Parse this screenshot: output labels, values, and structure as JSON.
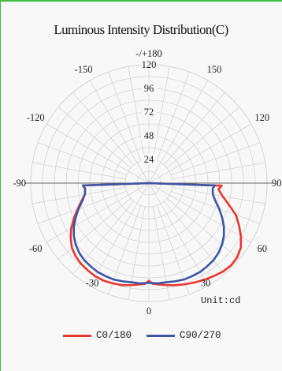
{
  "chart_data": {
    "type": "polar",
    "title": "Luminous Intensity Distribution(C)",
    "unit_label": "Unit:cd",
    "radial_ticks": [
      24,
      48,
      72,
      96,
      120
    ],
    "rmax": 120,
    "angle_labels": [
      {
        "text": "-/+180",
        "angle": 180
      },
      {
        "text": "150",
        "angle": 150
      },
      {
        "text": "-150",
        "angle": -150
      },
      {
        "text": "120",
        "angle": 120
      },
      {
        "text": "-120",
        "angle": -120
      },
      {
        "text": "90",
        "angle": 90
      },
      {
        "text": "-90",
        "angle": -90
      },
      {
        "text": "60",
        "angle": 60
      },
      {
        "text": "-60",
        "angle": -60
      },
      {
        "text": "30",
        "angle": 30
      },
      {
        "text": "-30",
        "angle": -30
      },
      {
        "text": "0",
        "angle": 0
      }
    ],
    "series": [
      {
        "name": "C0/180",
        "color": "#e8372e",
        "points": [
          [
            -90,
            0
          ],
          [
            -88,
            67
          ],
          [
            -85,
            65
          ],
          [
            -80,
            66
          ],
          [
            -75,
            71
          ],
          [
            -70,
            77
          ],
          [
            -65,
            84
          ],
          [
            -60,
            91
          ],
          [
            -55,
            97
          ],
          [
            -50,
            102
          ],
          [
            -45,
            105
          ],
          [
            -40,
            107
          ],
          [
            -35,
            108
          ],
          [
            -30,
            109
          ],
          [
            -25,
            109
          ],
          [
            -20,
            108
          ],
          [
            -15,
            107
          ],
          [
            -10,
            105
          ],
          [
            -5,
            103
          ],
          [
            -2,
            102
          ],
          [
            0,
            99
          ],
          [
            2,
            102
          ],
          [
            5,
            103
          ],
          [
            10,
            105
          ],
          [
            15,
            107
          ],
          [
            20,
            109
          ],
          [
            25,
            111
          ],
          [
            30,
            113
          ],
          [
            35,
            115
          ],
          [
            40,
            117
          ],
          [
            45,
            118
          ],
          [
            50,
            117
          ],
          [
            55,
            114
          ],
          [
            60,
            108
          ],
          [
            65,
            101
          ],
          [
            70,
            94
          ],
          [
            75,
            84
          ],
          [
            80,
            76
          ],
          [
            85,
            71
          ],
          [
            88,
            74
          ],
          [
            90,
            0
          ]
        ]
      },
      {
        "name": "C90/270",
        "color": "#3c55a5",
        "points": [
          [
            -90,
            0
          ],
          [
            -88,
            67
          ],
          [
            -85,
            65
          ],
          [
            -80,
            66
          ],
          [
            -75,
            70
          ],
          [
            -70,
            76
          ],
          [
            -65,
            82
          ],
          [
            -60,
            88
          ],
          [
            -55,
            93
          ],
          [
            -50,
            97
          ],
          [
            -45,
            100
          ],
          [
            -40,
            102
          ],
          [
            -35,
            103
          ],
          [
            -30,
            104
          ],
          [
            -25,
            104
          ],
          [
            -20,
            104
          ],
          [
            -15,
            103
          ],
          [
            -10,
            102
          ],
          [
            -5,
            102
          ],
          [
            0,
            101
          ],
          [
            5,
            102
          ],
          [
            10,
            102
          ],
          [
            15,
            103
          ],
          [
            20,
            104
          ],
          [
            25,
            104
          ],
          [
            30,
            104
          ],
          [
            35,
            103
          ],
          [
            40,
            102
          ],
          [
            45,
            100
          ],
          [
            50,
            97
          ],
          [
            55,
            93
          ],
          [
            60,
            88
          ],
          [
            65,
            82
          ],
          [
            70,
            76
          ],
          [
            75,
            70
          ],
          [
            80,
            66
          ],
          [
            85,
            65
          ],
          [
            88,
            67
          ],
          [
            90,
            0
          ]
        ]
      }
    ]
  }
}
